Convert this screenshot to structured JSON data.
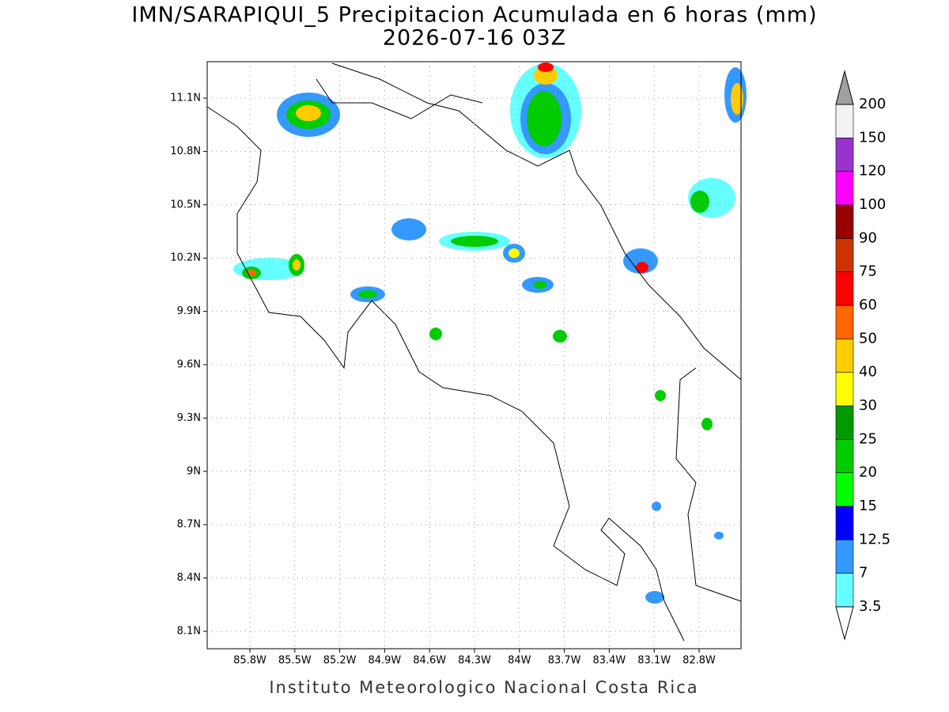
{
  "header": {
    "title": "IMN/SARAPIQUI_5 Precipitacion Acumulada en 6 horas (mm)",
    "subtitle": "2026-07-16 03Z"
  },
  "map": {
    "lat_labels": [
      "11.1N",
      "10.8N",
      "10.5N",
      "10.2N",
      "9.9N",
      "9.6N",
      "9.3N",
      "9N",
      "8.7N",
      "8.4N",
      "8.1N"
    ],
    "lon_labels": [
      "85.8W",
      "85.5W",
      "85.2W",
      "84.9W",
      "84.6W",
      "84.3W",
      "84W",
      "83.7W",
      "83.4W",
      "83.1W",
      "82.8W"
    ]
  },
  "colorbar": {
    "levels": [
      3.5,
      7,
      12.5,
      15,
      20,
      25,
      30,
      40,
      50,
      60,
      75,
      90,
      100,
      120,
      150,
      200
    ],
    "colors": [
      "#66ffff",
      "#3399ff",
      "#0000ff",
      "#00ff00",
      "#00cc00",
      "#009900",
      "#ffff00",
      "#ffcc00",
      "#ff6600",
      "#ff0000",
      "#cc3300",
      "#990000",
      "#ff00ff",
      "#9933cc",
      "#f2f2f2"
    ],
    "upper_color": "#a0a0a0",
    "lower_color": "#ffffff"
  },
  "footer": "Instituto Meteorologico Nacional Costa Rica"
}
